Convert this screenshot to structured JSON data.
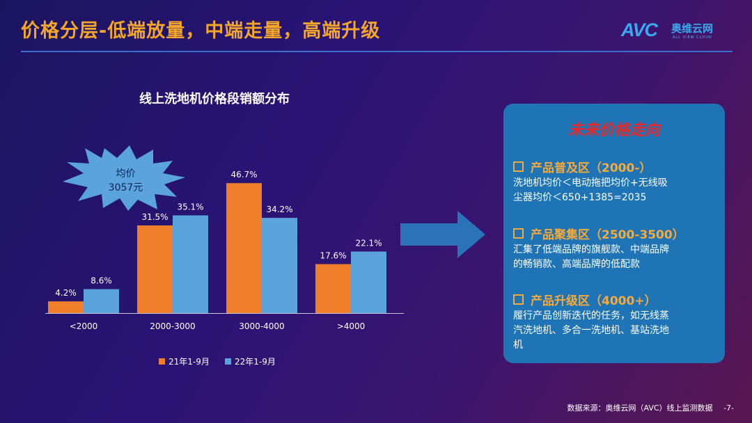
{
  "header": {
    "title": "价格分层-低端放量，中端走量，高端升级"
  },
  "logo": {
    "mark": "AVC",
    "name_cn": "奥维云网",
    "name_en": "ALL VIEW CLOUD"
  },
  "chart_data": {
    "type": "bar",
    "title": "线上洗地机价格段销额分布",
    "categories": [
      "<2000",
      "2000-3000",
      "3000-4000",
      ">4000"
    ],
    "series": [
      {
        "name": "21年1-9月",
        "values": [
          4.2,
          31.5,
          46.7,
          17.6
        ],
        "labels": [
          "4.2%",
          "31.5%",
          "46.7%",
          "17.6%"
        ],
        "color": "#f07f2c"
      },
      {
        "name": "22年1-9月",
        "values": [
          8.6,
          35.1,
          34.2,
          22.1
        ],
        "labels": [
          "8.6%",
          "35.1%",
          "34.2%",
          "22.1%"
        ],
        "color": "#5ba3dc"
      }
    ],
    "ylim": [
      0,
      50
    ],
    "legend": "bottom",
    "grid": false
  },
  "callout": {
    "line1": "均价",
    "line2": "3057元"
  },
  "panel": {
    "title": "未来价格走向",
    "zones": [
      {
        "head": "产品普及区（2000-）",
        "lines": [
          "洗地机均价＜电动拖把均价+无线吸",
          "尘器均价＜650+1385=2035"
        ]
      },
      {
        "head": "产品聚集区（2500-3500）",
        "lines": [
          "汇集了低端品牌的旗舰款、中端品牌",
          "的畅销款、高端品牌的低配款"
        ]
      },
      {
        "head": "产品升级区（4000+）",
        "lines": [
          "履行产品创新迭代的任务，如无线蒸",
          "汽洗地机、多合一洗地机、基站洗地",
          "机"
        ]
      }
    ]
  },
  "footer": {
    "source": "数据来源：奥维云网（AVC）线上监测数据",
    "page": "-7-"
  }
}
